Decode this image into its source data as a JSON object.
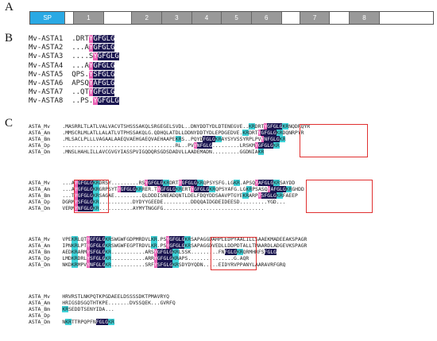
{
  "panels": {
    "a": "A",
    "b": "B",
    "c": "C"
  },
  "colors": {
    "conserved": "#1a1550",
    "similar_pink": "#ea64b5",
    "similar_cyan": "#3ed3d9",
    "signal_peptide": "#2aa9e4",
    "repeat": "#999999",
    "box": "#e03030"
  },
  "domain_bar": [
    {
      "label": "SP",
      "type": "sp",
      "width": 8.6
    },
    {
      "label": "",
      "type": "empty",
      "width": 2.0
    },
    {
      "label": "1",
      "type": "repeat",
      "width": 7.5
    },
    {
      "label": "",
      "type": "empty",
      "width": 6.8
    },
    {
      "label": "2",
      "type": "repeat",
      "width": 7.3
    },
    {
      "label": "3",
      "type": "repeat",
      "width": 7.3
    },
    {
      "label": "4",
      "type": "repeat",
      "width": 7.3
    },
    {
      "label": "5",
      "type": "repeat",
      "width": 7.3
    },
    {
      "label": "6",
      "type": "repeat",
      "width": 7.3
    },
    {
      "label": "",
      "type": "empty",
      "width": 4.5
    },
    {
      "label": "7",
      "type": "repeat",
      "width": 7.3
    },
    {
      "label": "",
      "type": "empty",
      "width": 4.8
    },
    {
      "label": "8",
      "type": "repeat",
      "width": 7.3
    },
    {
      "label": "",
      "type": "empty",
      "width": 13.0
    }
  ],
  "motifs": [
    {
      "name": "Mv-ASTA1",
      "seq": ".DRTYGFGLG"
    },
    {
      "name": "Mv-ASTA2",
      "seq": "...AYGFGLG"
    },
    {
      "name": "Mv-ASTA3",
      "seq": "....SYGFGLG"
    },
    {
      "name": "Mv-ASTA4",
      "seq": "...AYGFGLG"
    },
    {
      "name": "Mv-ASTA5",
      "seq": "QPS.YSFGLG"
    },
    {
      "name": "Mv-ASTA6",
      "seq": "APSQYAFGLG"
    },
    {
      "name": "Mv-ASTA7",
      "seq": "..QTYGFGLG"
    },
    {
      "name": "Mv-ASTA8",
      "seq": "..PS.YGFGLG"
    }
  ],
  "alignment_blocks": [
    {
      "rows": [
        {
          "name": "ASTA_Mv",
          "seq": ".MASRRLTLATLVALVACVTSHSSSAKQLSRGEGELSVDL..DNYDDTYDLDTENEGVE..KRDRTYGFGLGKRNQDRQYR"
        },
        {
          "name": "ASTA_Am",
          "seq": ".MMSCRLMLATLLALATLVTPHSSAKQLG.QDHQLATDLLDDNYDDTYDLEPDGEDVE.KRDRTYGFGLGKRDQNRPYR"
        },
        {
          "name": "ASTA_Bm",
          "seq": ".MLSACLPLLLVAGAALAAEQVAEHGAEQVAEHAAPEKRS..PQYDFGLGKRAYSYVSSYRPLPVYNFGLGKR"
        },
        {
          "name": "ASTA_Dp",
          "seq": ".....................................RL..PVYNFGLG.........LRSKMYGFGLGKR"
        },
        {
          "name": "ASTA_Dm",
          "seq": ".MNSLHAHLILLAVCGVGYIASSPVIGQDQRSGDSDADVLLAADEMADN.........GGDNIAKR"
        }
      ]
    },
    {
      "rows": [
        {
          "name": "ASTA_Mv",
          "seq": "...AYGFGLGKRDRSY.........RSYGFGLGKRDRTYGFGLGKRQPSYSFG.LGKR.APSQYAFGLGKRSAYDD"
        },
        {
          "name": "ASTA_Am",
          "seq": "...AYGFGLGKRGRPSYTYGFGLGKRRER.TYGFGLGKRERTYGFGLGKRQPSYAFG.LGKRPSASQYAFGLGKRGHDD"
        },
        {
          "name": "ASTA_Bm",
          "seq": "...TYGFGLGKRSAGAE.........QLDDDISNEADQNTLDELFDQYDDSAAVPTGYEKRARPYSFGLGKRFAEEP"
        },
        {
          "name": "ASTA_Dp",
          "seq": "DGRMYSFGLGKR...........DYDYYGEEDE.........DDQQAIDGDEIDEESD.........YGD..."
        },
        {
          "name": "ASTA_Dm",
          "seq": "VERMYNFGLGKR...........AYMYTNGGFG................................."
        }
      ]
    },
    {
      "rows": [
        {
          "name": "ASTA_Mv",
          "seq": "VPEKRLQTYGFGLGKRSWGWFGDPMRDVLKR.PSYGFGLGKRSAPAGGDAHPLEDPYAALILLSAAEKMADEEAKSPAGR"
        },
        {
          "name": "ASTA_Am",
          "seq": "IPNKRLPTYGFGLGKRSWGWFEGPTRDVLKR.PSYGFGLGKRSAPAGGDVEDLLDDPDTALLTMAARDLADGEVKSPAGR"
        },
        {
          "name": "ASTA_Bm",
          "seq": "AEDKRARMYSFGLGKR...........ARSYGFGLGKRLSSK.........FNFGLGKRQRMHRFSFGLG"
        },
        {
          "name": "ASTA_Dp",
          "seq": "LMDKRDRLYSFGLGKR...........ARRYGFGLGKRAPS...............G.AQR"
        },
        {
          "name": "ASTA_Dm",
          "seq": "NKDKRMPVYNFGLGKR...........SRFYSFGLGKRSDYDYQDN.....EIDYRVPPANYLAARAVRFGRQ"
        }
      ]
    },
    {
      "rows": [
        {
          "name": "ASTA_Mv",
          "seq": "HRVRSTLNKPQTKPGDAEELDSSSSDKTPMAVRYQ"
        },
        {
          "name": "ASTA_Am",
          "seq": "HRIGSDSGQTHTKPE.......DVSSQEK...GVRFQ"
        },
        {
          "name": "ASTA_Bm",
          "seq": "KRSEDDTSENYIDA..."
        },
        {
          "name": "ASTA_Dp",
          "seq": ""
        },
        {
          "name": "ASTA_Dm",
          "seq": "NKRTTRPQPFNFGLGKR"
        }
      ]
    }
  ]
}
